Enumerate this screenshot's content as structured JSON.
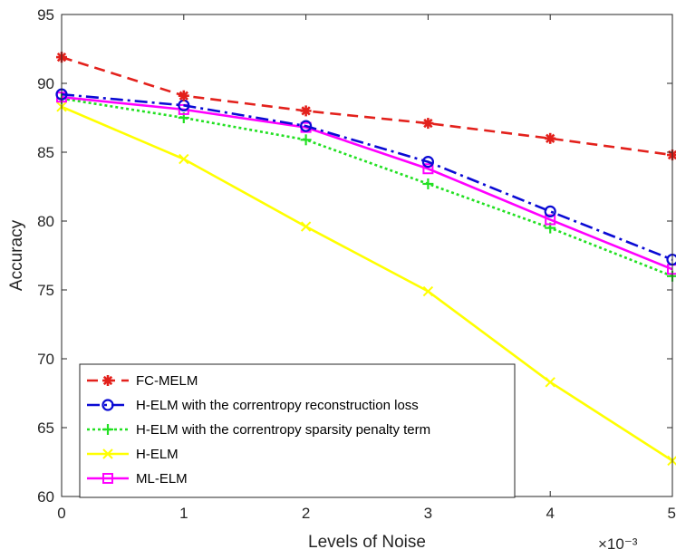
{
  "chart_data": {
    "type": "line",
    "xlabel": "Levels of Noise",
    "ylabel": "Accuracy",
    "x_exponent": "×10⁻³",
    "x": [
      0,
      1,
      2,
      3,
      4,
      5
    ],
    "xlim": [
      0,
      5
    ],
    "ylim": [
      60,
      95
    ],
    "xticks": [
      "0",
      "1",
      "2",
      "3",
      "4",
      "5"
    ],
    "yticks": [
      "60",
      "65",
      "70",
      "75",
      "80",
      "85",
      "90",
      "95"
    ],
    "grid": false,
    "legend_position": "bottom-left",
    "series": [
      {
        "name": "FC-MELM",
        "values": [
          91.9,
          89.1,
          88.0,
          87.1,
          86.0,
          84.8
        ],
        "color": "#e3211c",
        "dash": "12,7",
        "marker": "asterisk"
      },
      {
        "name": "H-ELM with the correntropy reconstruction loss",
        "values": [
          89.2,
          88.4,
          86.9,
          84.3,
          80.7,
          77.2
        ],
        "color": "#0a0ad4",
        "dash": "14,5,3,5",
        "marker": "circle"
      },
      {
        "name": "H-ELM with the correntropy sparsity penalty term",
        "values": [
          88.9,
          87.5,
          85.9,
          82.7,
          79.5,
          76.0
        ],
        "color": "#22e022",
        "dash": "3,3",
        "marker": "plus"
      },
      {
        "name": "H-ELM",
        "values": [
          88.3,
          84.5,
          79.6,
          74.9,
          68.3,
          62.6
        ],
        "color": "#ffff00",
        "dash": "",
        "marker": "x"
      },
      {
        "name": "ML-ELM",
        "values": [
          89.0,
          88.1,
          86.8,
          83.8,
          80.1,
          76.5
        ],
        "color": "#ff00ff",
        "dash": "",
        "marker": "square"
      }
    ]
  }
}
